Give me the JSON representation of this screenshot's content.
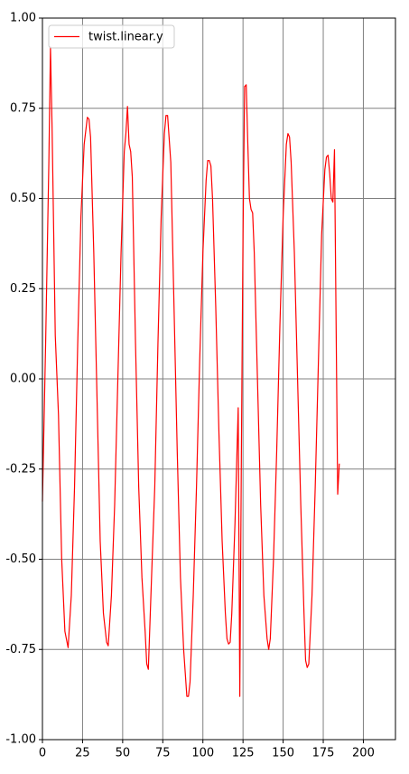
{
  "chart_data": {
    "type": "line",
    "x": [
      0,
      2,
      4,
      5,
      6,
      8,
      10,
      12,
      14,
      16,
      18,
      20,
      22,
      24,
      26,
      28,
      29,
      30,
      32,
      34,
      36,
      38,
      40,
      41,
      43,
      45,
      47,
      49,
      51,
      52,
      53,
      54,
      55,
      56,
      58,
      60,
      62,
      64,
      65,
      66,
      68,
      70,
      72,
      74,
      76,
      77,
      78,
      80,
      82,
      84,
      86,
      88,
      90,
      91,
      92,
      94,
      96,
      98,
      100,
      102,
      103,
      104,
      105,
      106,
      108,
      110,
      112,
      114,
      115,
      116,
      117,
      118,
      120,
      122,
      123,
      124,
      125,
      126,
      127,
      128,
      129,
      130,
      131,
      132,
      134,
      136,
      138,
      140,
      141,
      142,
      144,
      146,
      148,
      150,
      152,
      153,
      154,
      155,
      157,
      159,
      161,
      163,
      164,
      165,
      166,
      168,
      170,
      172,
      174,
      176,
      177,
      178,
      179,
      180,
      181,
      182,
      184,
      185
    ],
    "series": [
      {
        "name": "twist.linear.y",
        "color": "#ff0000",
        "values": [
          -0.34,
          0.1,
          0.6,
          0.92,
          0.7,
          0.12,
          -0.1,
          -0.5,
          -0.7,
          -0.745,
          -0.6,
          -0.3,
          0.1,
          0.45,
          0.65,
          0.725,
          0.72,
          0.67,
          0.35,
          -0.05,
          -0.45,
          -0.65,
          -0.73,
          -0.74,
          -0.6,
          -0.35,
          0.0,
          0.35,
          0.63,
          0.68,
          0.755,
          0.65,
          0.63,
          0.56,
          0.1,
          -0.3,
          -0.55,
          -0.7,
          -0.79,
          -0.805,
          -0.55,
          -0.3,
          0.1,
          0.45,
          0.68,
          0.73,
          0.73,
          0.6,
          0.2,
          -0.2,
          -0.55,
          -0.75,
          -0.88,
          -0.88,
          -0.84,
          -0.6,
          -0.3,
          0.05,
          0.35,
          0.55,
          0.605,
          0.605,
          0.59,
          0.5,
          0.2,
          -0.15,
          -0.45,
          -0.65,
          -0.72,
          -0.735,
          -0.73,
          -0.65,
          -0.4,
          -0.08,
          -0.88,
          -0.2,
          0.4,
          0.81,
          0.815,
          0.65,
          0.5,
          0.47,
          0.46,
          0.35,
          0.0,
          -0.35,
          -0.6,
          -0.72,
          -0.75,
          -0.72,
          -0.5,
          -0.2,
          0.15,
          0.45,
          0.65,
          0.68,
          0.67,
          0.6,
          0.35,
          0.0,
          -0.35,
          -0.65,
          -0.78,
          -0.8,
          -0.79,
          -0.6,
          -0.3,
          0.05,
          0.4,
          0.58,
          0.615,
          0.62,
          0.57,
          0.5,
          0.49,
          0.635,
          -0.32,
          -0.235
        ]
      }
    ],
    "xlim": [
      0,
      220
    ],
    "xticks": [
      0,
      25,
      50,
      75,
      100,
      125,
      150,
      175,
      200
    ],
    "ylim": [
      -1,
      1
    ],
    "yticks": [
      {
        "value": -1,
        "label": "-1.00"
      },
      {
        "value": -0.75,
        "label": "-0.75"
      },
      {
        "value": -0.5,
        "label": "-0.50"
      },
      {
        "value": -0.25,
        "label": "-0.25"
      },
      {
        "value": 0,
        "label": "0.00"
      },
      {
        "value": 0.25,
        "label": "0.25"
      },
      {
        "value": 0.5,
        "label": "0.50"
      },
      {
        "value": 0.75,
        "label": "0.75"
      },
      {
        "value": 1,
        "label": "1.00"
      }
    ],
    "grid": true,
    "legend": "upper left"
  }
}
